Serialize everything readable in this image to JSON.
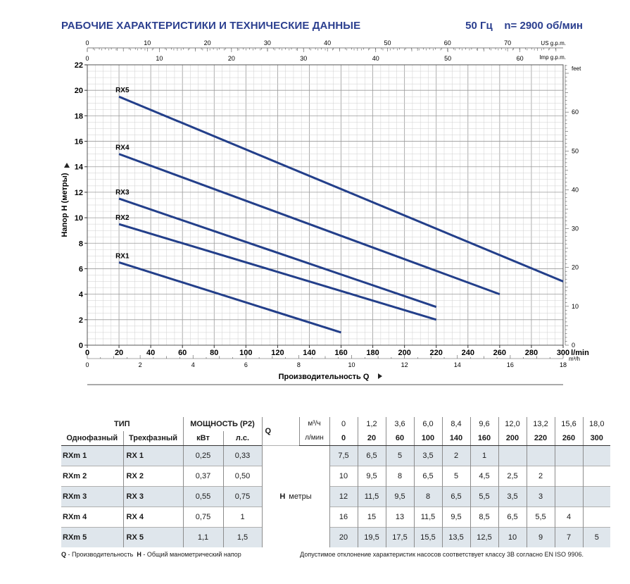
{
  "header": {
    "title": "РАБОЧИЕ ХАРАКТЕРИСТИКИ И ТЕХНИЧЕСКИЕ ДАННЫЕ",
    "freq": "50 Гц    n= 2900 об/мин"
  },
  "chart_data": {
    "type": "line",
    "xlabel": "Производительность Q",
    "ylabel": "Напор H (метры)",
    "x_unit": "l/min",
    "xlim": [
      0,
      300
    ],
    "ylim": [
      0,
      22
    ],
    "x_ticks": [
      0,
      20,
      40,
      60,
      80,
      100,
      120,
      140,
      160,
      180,
      200,
      220,
      240,
      260,
      280,
      300
    ],
    "y_ticks": [
      0,
      2,
      4,
      6,
      8,
      10,
      12,
      14,
      16,
      18,
      20,
      22
    ],
    "secondary_axes": {
      "us_gpm": {
        "label": "US g.p.m.",
        "ticks": [
          0,
          10,
          20,
          30,
          40,
          50,
          60,
          70
        ]
      },
      "imp_gpm": {
        "label": "Imp g.p.m.",
        "ticks": [
          0,
          10,
          20,
          30,
          40,
          50,
          60
        ]
      },
      "m3h": {
        "label": "m³/h",
        "ticks": [
          0,
          2,
          4,
          6,
          8,
          10,
          12,
          14,
          16,
          18
        ]
      },
      "feet": {
        "label": "feet",
        "ticks": [
          0,
          10,
          20,
          30,
          40,
          50,
          60
        ]
      }
    },
    "grid": true,
    "series": [
      {
        "name": "RX5",
        "x": [
          20,
          300
        ],
        "y": [
          19.5,
          5
        ]
      },
      {
        "name": "RX4",
        "x": [
          20,
          260
        ],
        "y": [
          15,
          4
        ]
      },
      {
        "name": "RX3",
        "x": [
          20,
          220
        ],
        "y": [
          11.5,
          3
        ]
      },
      {
        "name": "RX2",
        "x": [
          20,
          220
        ],
        "y": [
          9.5,
          2
        ]
      },
      {
        "name": "RX1",
        "x": [
          20,
          160
        ],
        "y": [
          6.5,
          1
        ]
      }
    ],
    "line_color": "#233f8a"
  },
  "table": {
    "type_header": "ТИП",
    "power_header": "МОЩНОСТЬ (P2)",
    "single_phase": "Однофазный",
    "three_phase": "Трехфазный",
    "kw": "кВт",
    "hp": "л.с.",
    "q_label": "Q",
    "unit_m3h": "м³/ч",
    "unit_lmin": "л/мин",
    "h_label": "H",
    "h_unit": "метры",
    "q_m3h": [
      "0",
      "1,2",
      "3,6",
      "6,0",
      "8,4",
      "9,6",
      "12,0",
      "13,2",
      "15,6",
      "18,0"
    ],
    "q_lmin": [
      "0",
      "20",
      "60",
      "100",
      "140",
      "160",
      "200",
      "220",
      "260",
      "300"
    ],
    "rows": [
      {
        "single": "RXm 1",
        "three": "RX 1",
        "kw": "0,25",
        "hp": "0,33",
        "h": [
          "7,5",
          "6,5",
          "5",
          "3,5",
          "2",
          "1",
          "",
          "",
          "",
          ""
        ]
      },
      {
        "single": "RXm 2",
        "three": "RX 2",
        "kw": "0,37",
        "hp": "0,50",
        "h": [
          "10",
          "9,5",
          "8",
          "6,5",
          "5",
          "4,5",
          "2,5",
          "2",
          "",
          ""
        ]
      },
      {
        "single": "RXm 3",
        "three": "RX 3",
        "kw": "0,55",
        "hp": "0,75",
        "h": [
          "12",
          "11,5",
          "9,5",
          "8",
          "6,5",
          "5,5",
          "3,5",
          "3",
          "",
          ""
        ]
      },
      {
        "single": "RXm 4",
        "three": "RX 4",
        "kw": "0,75",
        "hp": "1",
        "h": [
          "16",
          "15",
          "13",
          "11,5",
          "9,5",
          "8,5",
          "6,5",
          "5,5",
          "4",
          ""
        ]
      },
      {
        "single": "RXm 5",
        "three": "RX 5",
        "kw": "1,1",
        "hp": "1,5",
        "h": [
          "20",
          "19,5",
          "17,5",
          "15,5",
          "13,5",
          "12,5",
          "10",
          "9",
          "7",
          "5"
        ]
      }
    ]
  },
  "footer": {
    "q_key": "Q",
    "q_text": " - Производительность  ",
    "h_key": "H",
    "h_text": " - Общий манометрический напор",
    "note": "Допустимое отклонение характеристик насосов соответствует классу 3B согласно EN ISO 9906."
  }
}
